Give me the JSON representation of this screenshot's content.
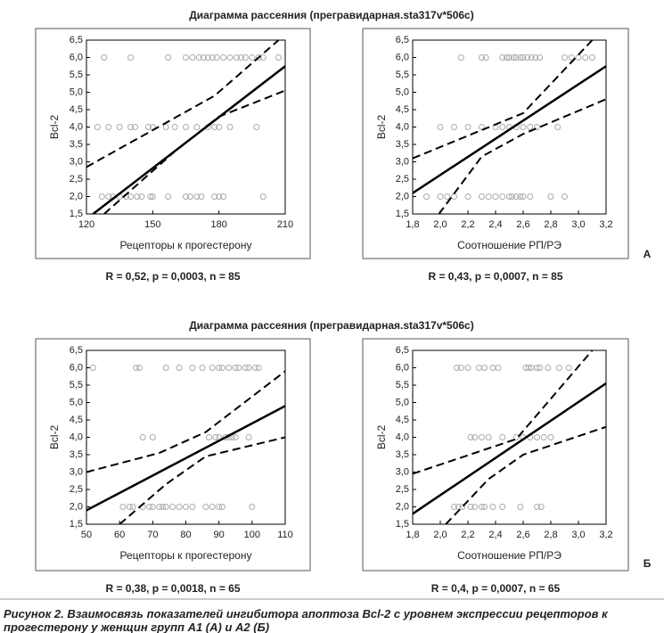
{
  "row_titles": [
    "Диаграмма рассеяния (прегравидарная.sta317v*506с)",
    "Диаграмма рассеяния (прегравидарная.sta317v*506с)"
  ],
  "panel_labels": [
    "А",
    "Б"
  ],
  "caption": [
    "Рисунок 2. Взаимосвязь показателей ингибитора апоптоза Bcl-2 с уровнем экспрессии рецепторов к",
    "прогестерону у женщин групп А1 (А) и А2 (Б)"
  ],
  "chart_data": [
    {
      "type": "scatter",
      "xlabel": "Рецепторы к прогестерону",
      "ylabel": "Bcl-2",
      "stats": "R = 0,52, p = 0,0003, n = 85",
      "xlim": [
        120,
        210
      ],
      "xticks": [
        120,
        150,
        180,
        210
      ],
      "ylim": [
        1.5,
        6.5
      ],
      "yticks": [
        {
          "value": 1.5,
          "label": "1,5"
        },
        {
          "value": 2,
          "label": "2,0"
        },
        {
          "value": 2.5,
          "label": "2,5"
        },
        {
          "value": 3,
          "label": "3,0"
        },
        {
          "value": 3.5,
          "label": "3,5"
        },
        {
          "value": 4,
          "label": "4,0"
        },
        {
          "value": 4.5,
          "label": "4,5"
        },
        {
          "value": 5,
          "label": "5,0"
        },
        {
          "value": 5.5,
          "label": "5,5"
        },
        {
          "value": 6,
          "label": "6,0"
        },
        {
          "value": 6.5,
          "label": "6,5"
        }
      ],
      "x": [
        128,
        140,
        157,
        165,
        168,
        171,
        173,
        175,
        177,
        179,
        182,
        185,
        188,
        190,
        192,
        195,
        198,
        200,
        207,
        125,
        130,
        135,
        140,
        142,
        148,
        150,
        156,
        160,
        165,
        170,
        175,
        178,
        180,
        185,
        197,
        127,
        130,
        132,
        135,
        138,
        140,
        143,
        145,
        149,
        150,
        157,
        165,
        167,
        170,
        172,
        178,
        180,
        182,
        200
      ],
      "y": [
        6,
        6,
        6,
        6,
        6,
        6,
        6,
        6,
        6,
        6,
        6,
        6,
        6,
        6,
        6,
        6,
        6,
        6,
        6,
        4,
        4,
        4,
        4,
        4,
        4,
        4,
        4,
        4,
        4,
        4,
        4,
        4,
        4,
        4,
        4,
        2,
        2,
        2,
        2,
        2,
        2,
        2,
        2,
        2,
        2,
        2,
        2,
        2,
        2,
        2,
        2,
        2,
        2,
        2
      ],
      "fit": {
        "x": [
          123,
          210
        ],
        "y": [
          1.5,
          5.75
        ]
      },
      "ci_upper": {
        "x": [
          120,
          178,
          207
        ],
        "y": [
          2.85,
          4.9,
          6.5
        ]
      },
      "ci_lower": {
        "x": [
          128,
          160,
          180,
          210
        ],
        "y": [
          1.5,
          3.3,
          4.3,
          5.05
        ]
      }
    },
    {
      "type": "scatter",
      "xlabel": "Соотношение РП/РЭ",
      "ylabel": "Bcl-2",
      "stats": "R = 0,43, p = 0,0007, n = 85",
      "xlim": [
        1.8,
        3.2
      ],
      "xticks": [
        {
          "value": 1.8,
          "label": "1,8"
        },
        {
          "value": 2,
          "label": "2,0"
        },
        {
          "value": 2.2,
          "label": "2,2"
        },
        {
          "value": 2.4,
          "label": "2,4"
        },
        {
          "value": 2.6,
          "label": "2,6"
        },
        {
          "value": 2.8,
          "label": "2,8"
        },
        {
          "value": 3,
          "label": "3,0"
        },
        {
          "value": 3.2,
          "label": "3,2"
        }
      ],
      "ylim": [
        1.5,
        6.5
      ],
      "yticks": [
        {
          "value": 1.5,
          "label": "1,5"
        },
        {
          "value": 2,
          "label": "2,0"
        },
        {
          "value": 2.5,
          "label": "2,5"
        },
        {
          "value": 3,
          "label": "3,0"
        },
        {
          "value": 3.5,
          "label": "3,5"
        },
        {
          "value": 4,
          "label": "4,0"
        },
        {
          "value": 4.5,
          "label": "4,5"
        },
        {
          "value": 5,
          "label": "5,0"
        },
        {
          "value": 5.5,
          "label": "5,5"
        },
        {
          "value": 6,
          "label": "6,0"
        },
        {
          "value": 6.5,
          "label": "6,5"
        }
      ],
      "x": [
        2.15,
        2.3,
        2.33,
        2.45,
        2.48,
        2.5,
        2.53,
        2.55,
        2.58,
        2.6,
        2.63,
        2.66,
        2.69,
        2.72,
        2.9,
        2.95,
        3.0,
        3.05,
        3.1,
        2.0,
        2.1,
        2.2,
        2.3,
        2.4,
        2.45,
        2.5,
        2.55,
        2.6,
        2.65,
        2.7,
        2.85,
        1.9,
        2.0,
        2.05,
        2.1,
        2.2,
        2.3,
        2.35,
        2.4,
        2.45,
        2.5,
        2.52,
        2.55,
        2.58,
        2.6,
        2.65,
        2.8,
        2.9
      ],
      "y": [
        6,
        6,
        6,
        6,
        6,
        6,
        6,
        6,
        6,
        6,
        6,
        6,
        6,
        6,
        6,
        6,
        6,
        6,
        6,
        4,
        4,
        4,
        4,
        4,
        4,
        4,
        4,
        4,
        4,
        4,
        4,
        2,
        2,
        2,
        2,
        2,
        2,
        2,
        2,
        2,
        2,
        2,
        2,
        2,
        2,
        2,
        2,
        2
      ],
      "fit": {
        "x": [
          1.8,
          3.2
        ],
        "y": [
          2.1,
          5.75
        ]
      },
      "ci_upper": {
        "x": [
          1.8,
          2.6,
          3.1
        ],
        "y": [
          3.1,
          4.4,
          6.5
        ]
      },
      "ci_lower": {
        "x": [
          1.99,
          2.3,
          2.6,
          3.2
        ],
        "y": [
          1.5,
          3.15,
          3.8,
          4.8
        ]
      }
    },
    {
      "type": "scatter",
      "xlabel": "Рецепторы к прогестерону",
      "ylabel": "Bcl-2",
      "stats": "R = 0,38, p = 0,0018, n = 65",
      "xlim": [
        50,
        110
      ],
      "xticks": [
        50,
        60,
        70,
        80,
        90,
        100,
        110
      ],
      "ylim": [
        1.5,
        6.5
      ],
      "yticks": [
        {
          "value": 1.5,
          "label": "1,5"
        },
        {
          "value": 2,
          "label": "2,0"
        },
        {
          "value": 2.5,
          "label": "2,5"
        },
        {
          "value": 3,
          "label": "3,0"
        },
        {
          "value": 3.5,
          "label": "3,5"
        },
        {
          "value": 4,
          "label": "4,0"
        },
        {
          "value": 4.5,
          "label": "4,5"
        },
        {
          "value": 5,
          "label": "5,0"
        },
        {
          "value": 5.5,
          "label": "5,5"
        },
        {
          "value": 6,
          "label": "6,0"
        },
        {
          "value": 6.5,
          "label": "6,5"
        }
      ],
      "x": [
        52,
        65,
        66,
        74,
        78,
        82,
        85,
        88,
        90,
        91,
        93,
        95,
        96,
        98,
        99,
        101,
        102,
        67,
        70,
        87,
        89,
        90,
        92,
        93,
        94,
        95,
        99,
        61,
        63,
        64,
        67,
        69,
        70,
        72,
        73,
        74,
        76,
        78,
        80,
        82,
        86,
        88,
        90,
        91,
        100
      ],
      "y": [
        6,
        6,
        6,
        6,
        6,
        6,
        6,
        6,
        6,
        6,
        6,
        6,
        6,
        6,
        6,
        6,
        6,
        4,
        4,
        4,
        4,
        4,
        4,
        4,
        4,
        4,
        4,
        2,
        2,
        2,
        2,
        2,
        2,
        2,
        2,
        2,
        2,
        2,
        2,
        2,
        2,
        2,
        2,
        2,
        2
      ],
      "fit": {
        "x": [
          50,
          110
        ],
        "y": [
          1.9,
          4.9
        ]
      },
      "ci_upper": {
        "x": [
          50,
          72,
          86,
          110
        ],
        "y": [
          3.0,
          3.55,
          4.15,
          5.9
        ]
      },
      "ci_lower": {
        "x": [
          60,
          74,
          86,
          110
        ],
        "y": [
          1.5,
          2.65,
          3.45,
          4.0
        ]
      }
    },
    {
      "type": "scatter",
      "xlabel": "Соотношение РП/РЭ",
      "ylabel": "Bcl-2",
      "stats": "R = 0,4, p = 0,0007, n = 65",
      "xlim": [
        1.8,
        3.2
      ],
      "xticks": [
        {
          "value": 1.8,
          "label": "1,8"
        },
        {
          "value": 2,
          "label": "2,0"
        },
        {
          "value": 2.2,
          "label": "2,2"
        },
        {
          "value": 2.4,
          "label": "2,4"
        },
        {
          "value": 2.6,
          "label": "2,6"
        },
        {
          "value": 2.8,
          "label": "2,8"
        },
        {
          "value": 3,
          "label": "3,0"
        },
        {
          "value": 3.2,
          "label": "3,2"
        }
      ],
      "ylim": [
        1.5,
        6.5
      ],
      "yticks": [
        {
          "value": 1.5,
          "label": "1,5"
        },
        {
          "value": 2,
          "label": "2,0"
        },
        {
          "value": 2.5,
          "label": "2,5"
        },
        {
          "value": 3,
          "label": "3,0"
        },
        {
          "value": 3.5,
          "label": "3,5"
        },
        {
          "value": 4,
          "label": "4,0"
        },
        {
          "value": 4.5,
          "label": "4,5"
        },
        {
          "value": 5,
          "label": "5,0"
        },
        {
          "value": 5.5,
          "label": "5,5"
        },
        {
          "value": 6,
          "label": "6,0"
        },
        {
          "value": 6.5,
          "label": "6,5"
        }
      ],
      "x": [
        2.12,
        2.15,
        2.2,
        2.28,
        2.32,
        2.38,
        2.42,
        2.62,
        2.64,
        2.66,
        2.7,
        2.72,
        2.78,
        2.86,
        2.93,
        2.22,
        2.25,
        2.3,
        2.35,
        2.45,
        2.55,
        2.6,
        2.65,
        2.7,
        2.75,
        2.8,
        2.1,
        2.13,
        2.16,
        2.22,
        2.25,
        2.3,
        2.32,
        2.38,
        2.45,
        2.58,
        2.7,
        2.73
      ],
      "y": [
        6,
        6,
        6,
        6,
        6,
        6,
        6,
        6,
        6,
        6,
        6,
        6,
        6,
        6,
        6,
        4,
        4,
        4,
        4,
        4,
        4,
        4,
        4,
        4,
        4,
        4,
        2,
        2,
        2,
        2,
        2,
        2,
        2,
        2,
        2,
        2,
        2,
        2
      ],
      "fit": {
        "x": [
          1.8,
          3.2
        ],
        "y": [
          1.8,
          5.55
        ]
      },
      "ci_upper": {
        "x": [
          1.8,
          2.55,
          3.1
        ],
        "y": [
          2.95,
          3.95,
          6.5
        ]
      },
      "ci_lower": {
        "x": [
          2.04,
          2.35,
          2.6,
          3.2
        ],
        "y": [
          1.5,
          2.8,
          3.5,
          4.3
        ]
      }
    }
  ]
}
